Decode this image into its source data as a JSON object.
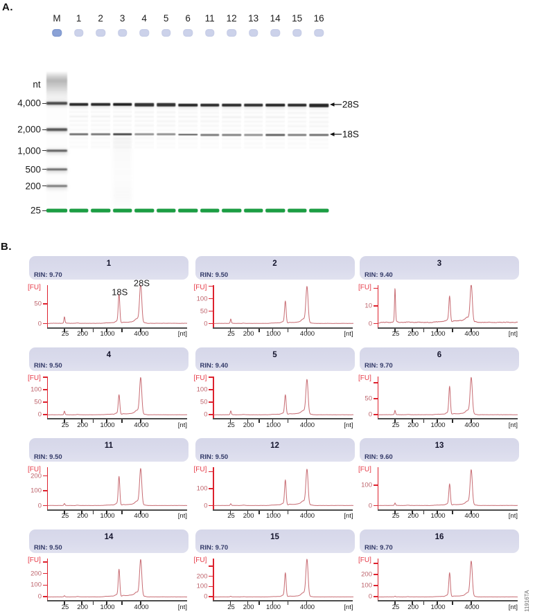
{
  "figure": {
    "panel_a_label": "A.",
    "panel_b_label": "B.",
    "figure_id": "11916TA",
    "background": "#ffffff"
  },
  "gel": {
    "nt_axis_label": "nt",
    "lane_labels": [
      "M",
      "1",
      "2",
      "3",
      "4",
      "5",
      "6",
      "11",
      "12",
      "13",
      "14",
      "15",
      "16"
    ],
    "well_colors": {
      "marker_well": "#8ba2d6",
      "sample_well": "#ccd2ea"
    },
    "ladder_bands": [
      {
        "label": "4,000",
        "y": 149.2,
        "alpha": 0.8
      },
      {
        "label": "2,000",
        "y": 187.4,
        "alpha": 0.72
      },
      {
        "label": "1,000",
        "y": 217.6,
        "alpha": 0.7
      },
      {
        "label": "500",
        "y": 244.8,
        "alpha": 0.62
      },
      {
        "label": "200",
        "y": 268.7,
        "alpha": 0.55
      }
    ],
    "lower_marker": {
      "label": "25",
      "y": 304.2,
      "color": "#1b9e43"
    },
    "sample_bands": {
      "b28S_y": 150.9,
      "b18S_y": 193.9
    },
    "faint_bands": [
      {
        "y": 161.8,
        "alpha": 0.035
      },
      {
        "y": 168.2,
        "alpha": 0.05
      },
      {
        "y": 174.6,
        "alpha": 0.038
      },
      {
        "y": 180.8,
        "alpha": 0.03
      },
      {
        "y": 187.2,
        "alpha": 0.02
      },
      {
        "y": 199.6,
        "alpha": 0.022
      },
      {
        "y": 206.0,
        "alpha": 0.016
      },
      {
        "y": 212.2,
        "alpha": 0.013
      }
    ],
    "sample_intensities": [
      {
        "lane": "1",
        "i28": 0.88,
        "i18": 0.6
      },
      {
        "lane": "2",
        "i28": 0.88,
        "i18": 0.57
      },
      {
        "lane": "3",
        "i28": 0.92,
        "i18": 0.78,
        "smear": true
      },
      {
        "lane": "4",
        "i28": 0.84,
        "i18": 0.45
      },
      {
        "lane": "5",
        "i28": 0.84,
        "i18": 0.47
      },
      {
        "lane": "6",
        "i28": 0.9,
        "i18": 0.74
      },
      {
        "lane": "11",
        "i28": 0.88,
        "i18": 0.57
      },
      {
        "lane": "12",
        "i28": 0.88,
        "i18": 0.54
      },
      {
        "lane": "13",
        "i28": 0.86,
        "i18": 0.46
      },
      {
        "lane": "14",
        "i28": 0.9,
        "i18": 0.68
      },
      {
        "lane": "15",
        "i28": 0.88,
        "i18": 0.55
      },
      {
        "lane": "16",
        "i28": 0.9,
        "i18": 0.61
      }
    ],
    "annotations": [
      {
        "text": "28S",
        "y": 150.9
      },
      {
        "text": "18S",
        "y": 193.9
      }
    ]
  },
  "chart_data": {
    "type": "line",
    "title": "",
    "xlabel": "[nt]",
    "ylabel": "[FU]",
    "legend": "none",
    "grid": false,
    "x_ticks": [
      {
        "nt": 25,
        "label": "25"
      },
      {
        "nt": 200,
        "label": "200"
      },
      {
        "nt": 500,
        "label": ""
      },
      {
        "nt": 1000,
        "label": "1000"
      },
      {
        "nt": 2000,
        "label": ""
      },
      {
        "nt": 4000,
        "label": "4000"
      }
    ],
    "x_axis_end_label": "[nt]",
    "trace_color": "#c76b72",
    "axis_color": "#dd212d",
    "peak_positions_nt": {
      "lower_marker": 25,
      "rna_18S": 1750,
      "rna_28S": 4000
    },
    "panel_annotations": [
      {
        "text": "18S",
        "peak": "rna_18S"
      },
      {
        "text": "28S",
        "peak": "rna_28S"
      }
    ],
    "panels": [
      {
        "sample": "1",
        "rin_label": "RIN: 9.70",
        "ymax": 97,
        "yticks": [
          {
            "v": 0,
            "label": "0"
          },
          {
            "v": 50,
            "label": "50"
          }
        ],
        "peaks_fu": {
          "lower_marker": 16,
          "rna_18S": 73,
          "rna_28S": 95
        },
        "noise_fu": 0.5,
        "bump_fu": 3.5,
        "annotate": true
      },
      {
        "sample": "2",
        "rin_label": "RIN: 9.50",
        "ymax": 153,
        "yticks": [
          {
            "v": 0,
            "label": "0"
          },
          {
            "v": 50,
            "label": "50"
          },
          {
            "v": 100,
            "label": "100"
          },
          {
            "v": 150,
            "label": ""
          }
        ],
        "peaks_fu": {
          "lower_marker": 17,
          "rna_18S": 88,
          "rna_28S": 140
        },
        "noise_fu": 0.6,
        "bump_fu": 5,
        "annotate": false
      },
      {
        "sample": "3",
        "rin_label": "RIN: 9.40",
        "ymax": 21.5,
        "yticks": [
          {
            "v": 0,
            "label": "0"
          },
          {
            "v": 10,
            "label": "10"
          },
          {
            "v": 20,
            "label": ""
          }
        ],
        "peaks_fu": {
          "lower_marker": 18.5,
          "rna_18S": 14.5,
          "rna_28S": 20.3
        },
        "noise_fu": 0.28,
        "bump_fu": 1.1,
        "annotate": false
      },
      {
        "sample": "4",
        "rin_label": "RIN: 9.50",
        "ymax": 152,
        "yticks": [
          {
            "v": 0,
            "label": "0"
          },
          {
            "v": 50,
            "label": "50"
          },
          {
            "v": 100,
            "label": "100"
          },
          {
            "v": 150,
            "label": ""
          }
        ],
        "peaks_fu": {
          "lower_marker": 14,
          "rna_18S": 78,
          "rna_28S": 140
        },
        "noise_fu": 0.6,
        "bump_fu": 5,
        "annotate": false
      },
      {
        "sample": "5",
        "rin_label": "RIN: 9.40",
        "ymax": 152,
        "yticks": [
          {
            "v": 0,
            "label": "0"
          },
          {
            "v": 50,
            "label": "50"
          },
          {
            "v": 100,
            "label": "100"
          },
          {
            "v": 150,
            "label": ""
          }
        ],
        "peaks_fu": {
          "lower_marker": 15,
          "rna_18S": 78,
          "rna_28S": 133
        },
        "noise_fu": 0.6,
        "bump_fu": 5,
        "annotate": false
      },
      {
        "sample": "6",
        "rin_label": "RIN: 9.70",
        "ymax": 119,
        "yticks": [
          {
            "v": 0,
            "label": "0"
          },
          {
            "v": 50,
            "label": "50"
          },
          {
            "v": 100,
            "label": ""
          }
        ],
        "peaks_fu": {
          "lower_marker": 13,
          "rna_18S": 87,
          "rna_28S": 110
        },
        "noise_fu": 0.55,
        "bump_fu": 4,
        "annotate": false
      },
      {
        "sample": "11",
        "rin_label": "RIN: 9.50",
        "ymax": 257,
        "yticks": [
          {
            "v": 0,
            "label": "0"
          },
          {
            "v": 100,
            "label": "100"
          },
          {
            "v": 200,
            "label": "200"
          }
        ],
        "peaks_fu": {
          "lower_marker": 13,
          "rna_18S": 192,
          "rna_28S": 235
        },
        "noise_fu": 0.8,
        "bump_fu": 8,
        "annotate": false
      },
      {
        "sample": "12",
        "rin_label": "RIN: 9.50",
        "ymax": 225,
        "yticks": [
          {
            "v": 0,
            "label": "0"
          },
          {
            "v": 100,
            "label": "100"
          },
          {
            "v": 200,
            "label": ""
          }
        ],
        "peaks_fu": {
          "lower_marker": 10,
          "rna_18S": 148,
          "rna_28S": 202
        },
        "noise_fu": 0.8,
        "bump_fu": 9,
        "annotate": false
      },
      {
        "sample": "13",
        "rin_label": "RIN: 9.60",
        "ymax": 188,
        "yticks": [
          {
            "v": 0,
            "label": "0"
          },
          {
            "v": 100,
            "label": "100"
          }
        ],
        "peaks_fu": {
          "lower_marker": 12,
          "rna_18S": 104,
          "rna_28S": 166
        },
        "noise_fu": 0.7,
        "bump_fu": 6,
        "annotate": false
      },
      {
        "sample": "14",
        "rin_label": "RIN: 9.50",
        "ymax": 330,
        "yticks": [
          {
            "v": 0,
            "label": "0"
          },
          {
            "v": 100,
            "label": "100"
          },
          {
            "v": 200,
            "label": "200"
          },
          {
            "v": 300,
            "label": ""
          }
        ],
        "peaks_fu": {
          "lower_marker": 10,
          "rna_18S": 235,
          "rna_28S": 305
        },
        "noise_fu": 1.05,
        "bump_fu": 16,
        "annotate": false
      },
      {
        "sample": "15",
        "rin_label": "RIN: 9.70",
        "ymax": 375,
        "yticks": [
          {
            "v": 0,
            "label": "0"
          },
          {
            "v": 100,
            "label": "100"
          },
          {
            "v": 200,
            "label": "200"
          },
          {
            "v": 300,
            "label": ""
          }
        ],
        "peaks_fu": {
          "lower_marker": 6,
          "rna_18S": 232,
          "rna_28S": 349
        },
        "noise_fu": 0.95,
        "bump_fu": 9,
        "annotate": false
      },
      {
        "sample": "16",
        "rin_label": "RIN: 9.70",
        "ymax": 345,
        "yticks": [
          {
            "v": 0,
            "label": "0"
          },
          {
            "v": 100,
            "label": "100"
          },
          {
            "v": 200,
            "label": "200"
          },
          {
            "v": 300,
            "label": ""
          }
        ],
        "peaks_fu": {
          "lower_marker": 6,
          "rna_18S": 215,
          "rna_28S": 305
        },
        "noise_fu": 0.95,
        "bump_fu": 10,
        "annotate": false
      }
    ]
  }
}
